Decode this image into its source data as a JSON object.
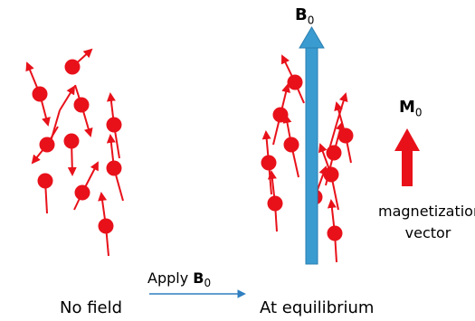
{
  "labels": {
    "b0_symbol": "B",
    "b0_subscript": "0",
    "m0_symbol": "M",
    "m0_subscript": "0",
    "magnetization_line1": "magnetization",
    "magnetization_line2": "vector",
    "no_field": "No field",
    "apply_prefix": "Apply ",
    "apply_symbol": "B",
    "apply_subscript": "0",
    "equilibrium": "At equilibrium"
  },
  "colors": {
    "spin": "#e8111a",
    "field": "#3a9bd0",
    "magnetization": "#e8111a",
    "process_arrow": "#2f7fc1"
  }
}
